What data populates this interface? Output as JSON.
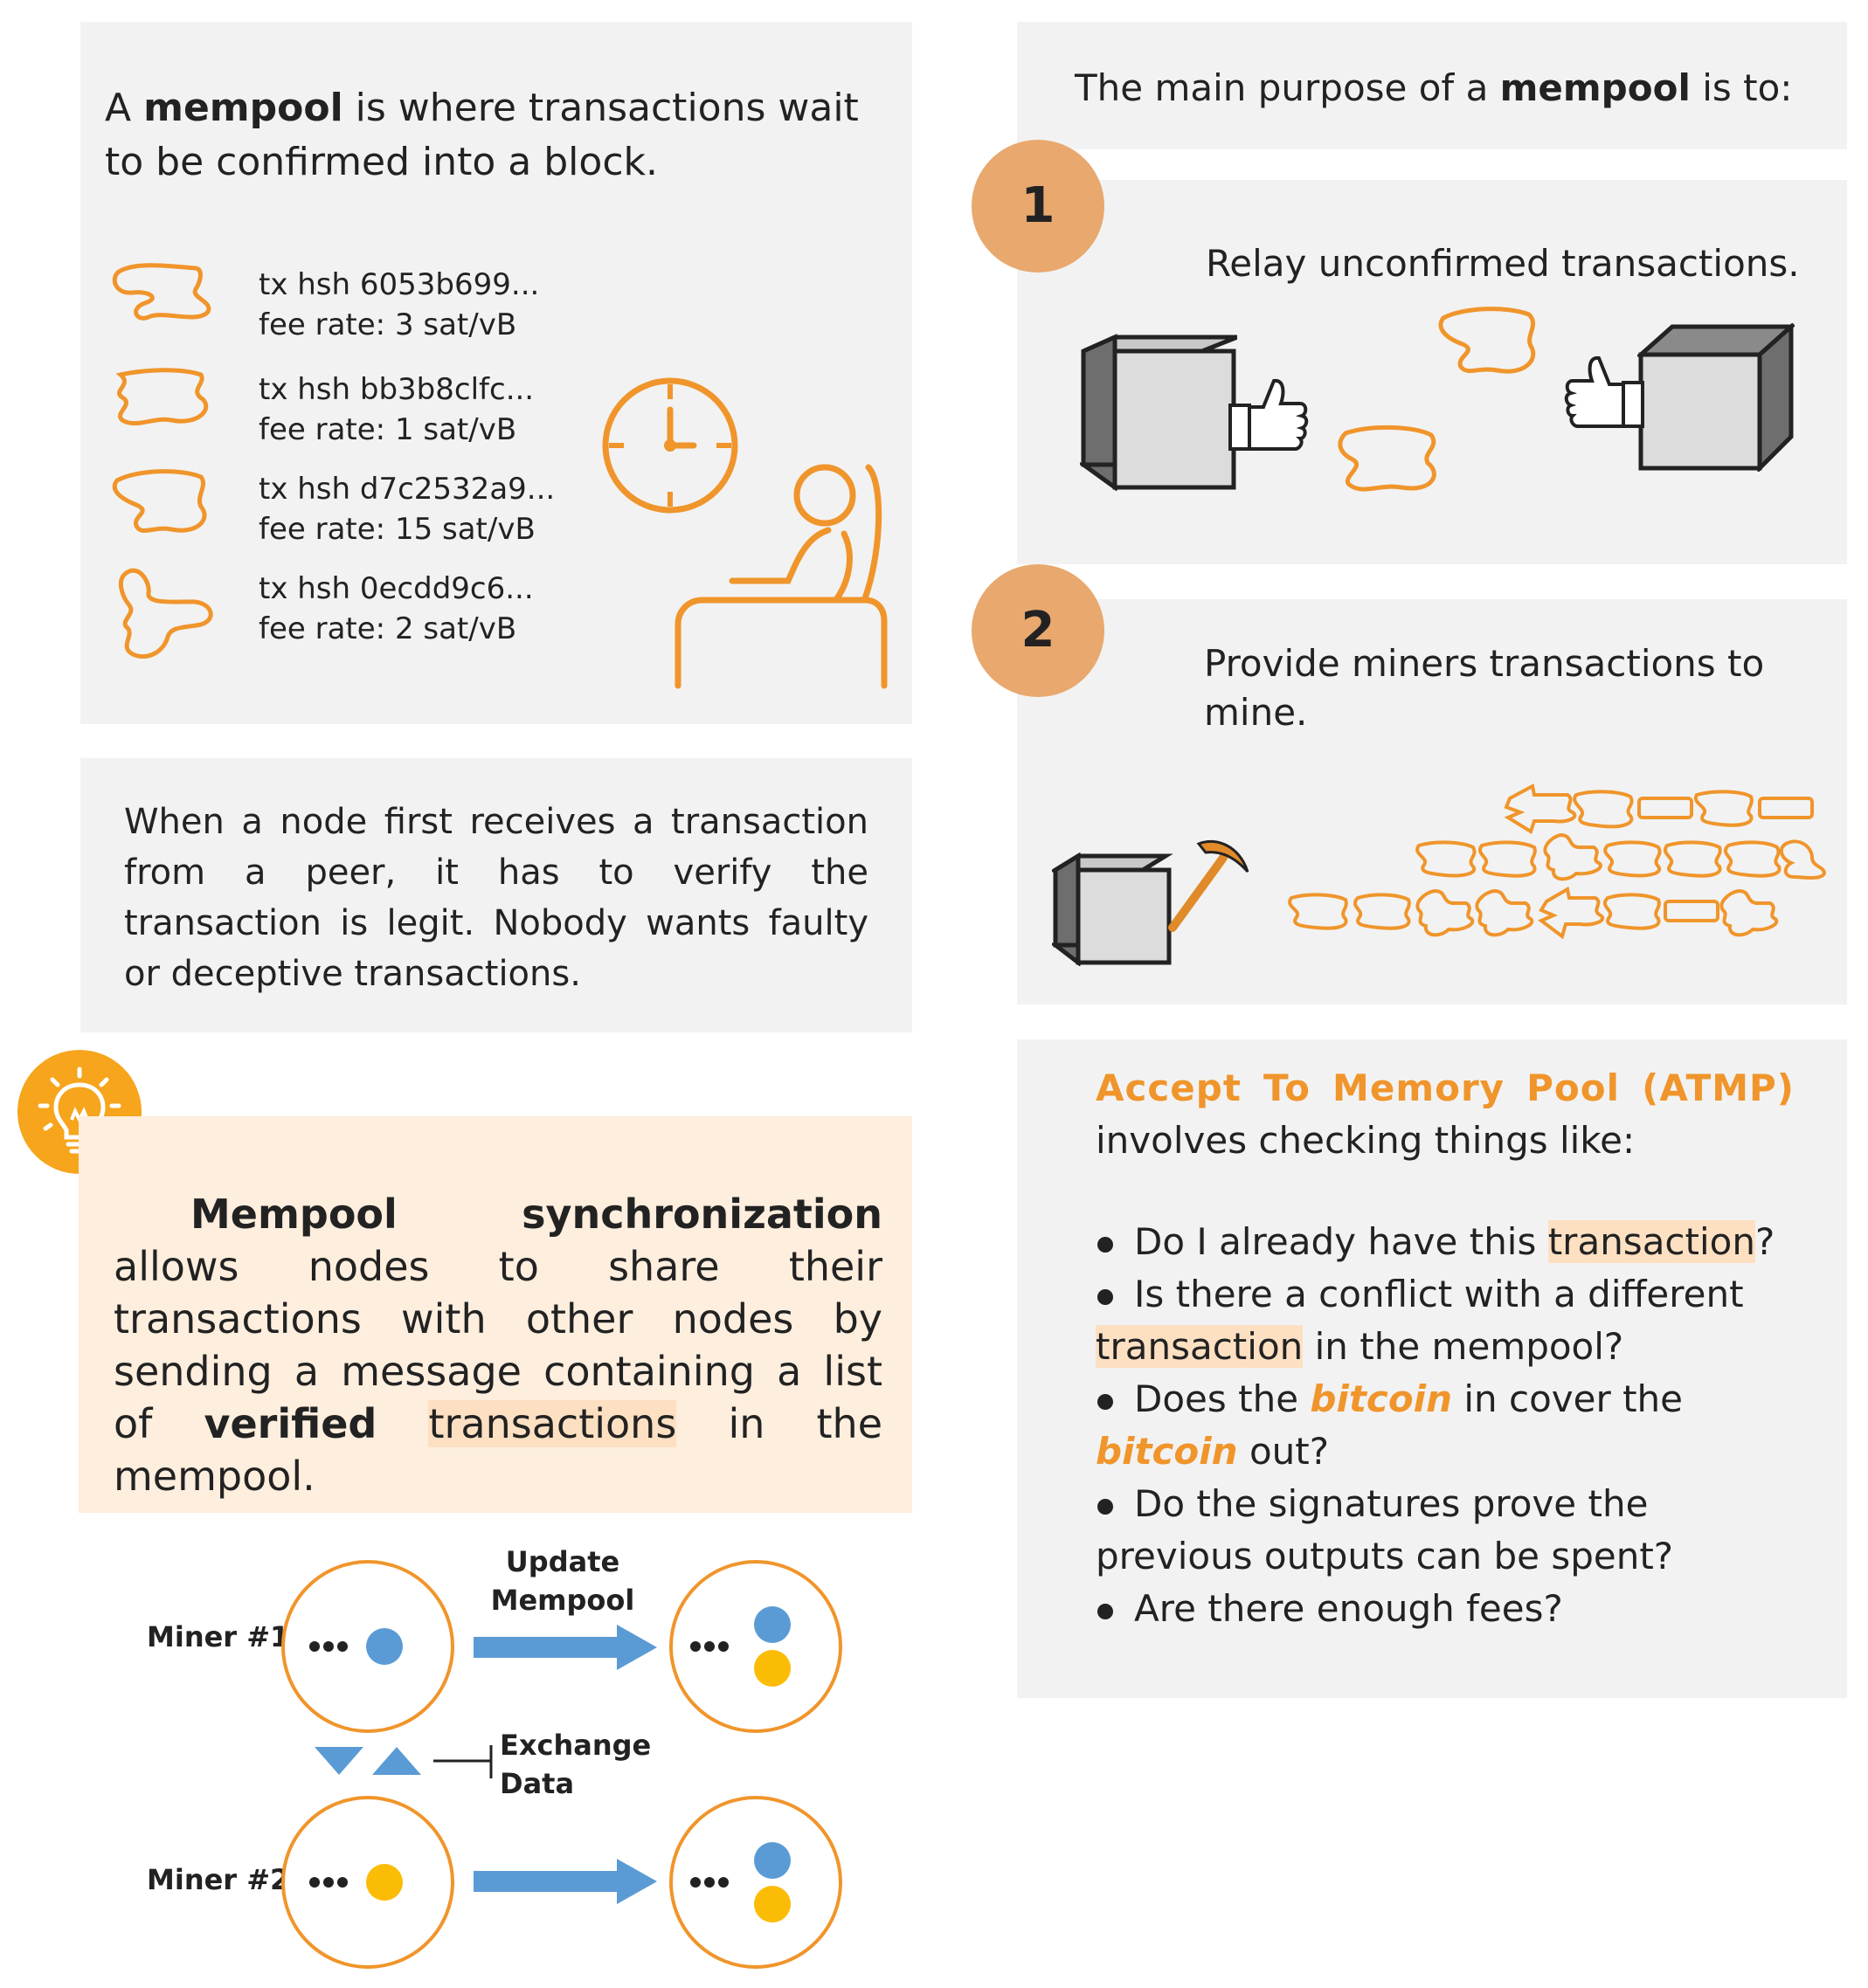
{
  "intro": {
    "prefix": "A ",
    "bold": "mempool",
    "suffix": " is where transactions wait to be confirmed into a block."
  },
  "transactions": [
    {
      "hash": "tx hsh 6053b699...",
      "fee": "fee rate: 3 sat/vB"
    },
    {
      "hash": "tx hsh bb3b8clfc...",
      "fee": "fee rate: 1 sat/vB"
    },
    {
      "hash": "tx hsh d7c2532a9...",
      "fee": "fee rate: 15 sat/vB"
    },
    {
      "hash": "tx hsh 0ecdd9c6...",
      "fee": "fee rate: 2 sat/vB"
    }
  ],
  "verify_text": "When a node first receives a transaction from a peer, it has to verify the transaction is legit. Nobody wants faulty or deceptive transactions.",
  "sync": {
    "bold1": "Mempool synchronization",
    "text1": "  allows nodes to share their transactions with other nodes by sending a message containing a list of ",
    "bold2": "verified",
    "highlight": "transactions",
    "text2": " in the mempool."
  },
  "diagram": {
    "miner1": "Miner #1",
    "miner2": "Miner #2",
    "update_line1": "Update",
    "update_line2": "Mempool",
    "exchange_line1": "Exchange",
    "exchange_line2": "Data",
    "dots": "•••"
  },
  "purpose": {
    "prefix": "The main purpose of a ",
    "bold": "mempool",
    "suffix": " is to:"
  },
  "steps": [
    {
      "number": "1",
      "text": "Relay unconfirmed transactions."
    },
    {
      "number": "2",
      "text": "Provide miners transactions to mine."
    }
  ],
  "atmp": {
    "title": "Accept To Memory Pool (ATMP)",
    "intro": "involves checking things like:",
    "q1_a": "Do I already have this ",
    "q1_hl": "transaction",
    "q1_b": "?",
    "q2_a": "Is there a conflict with a different ",
    "q2_hl": "transaction",
    "q2_b": " in the mempool?",
    "q3_a": "Does the ",
    "q3_o1": "bitcoin",
    "q3_b": " in cover the ",
    "q3_o2": "bitcoin",
    "q3_c": " out?",
    "q4": "Do the signatures prove the previous outputs can be spent?",
    "q5": "Are there enough fees?"
  },
  "colors": {
    "orange": "#f0952b",
    "orange_dark": "#e8a86e",
    "panel": "#f2f2f2",
    "highlight": "#fde0c2",
    "blue": "#5b9bd5",
    "yellow": "#fbbc05",
    "bulb_bg": "#f6a51c"
  }
}
